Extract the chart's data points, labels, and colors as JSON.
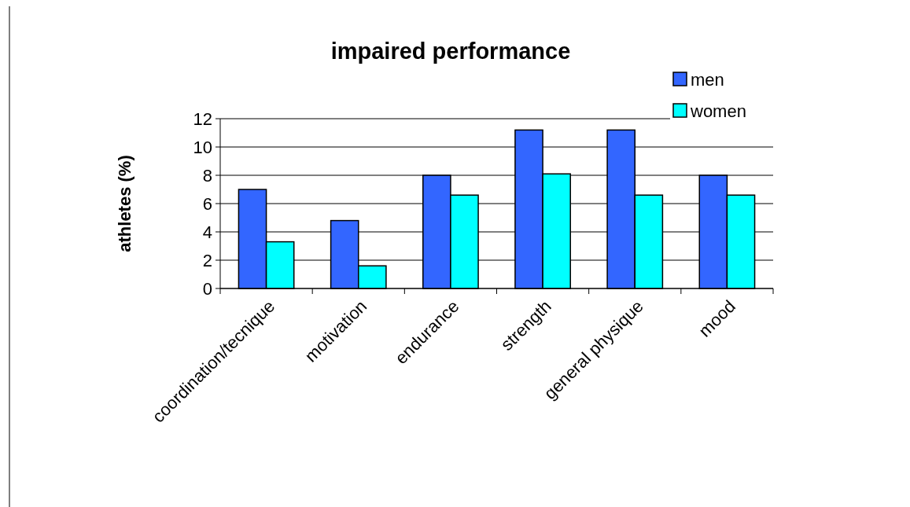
{
  "chart_data": {
    "type": "bar",
    "title": "impaired performance",
    "ylabel": "athletes (%)",
    "categories": [
      "coordination/tecnique",
      "motivation",
      "endurance",
      "strength",
      "general physique",
      "mood"
    ],
    "series": [
      {
        "name": "men",
        "color": "#3366ff",
        "values": [
          7,
          4.8,
          8,
          11.2,
          11.2,
          8
        ]
      },
      {
        "name": "women",
        "color": "#00ffff",
        "values": [
          3.3,
          1.6,
          6.6,
          8.1,
          6.6,
          6.6
        ]
      }
    ],
    "ylim": [
      0,
      12
    ],
    "yticks": [
      0,
      2,
      4,
      6,
      8,
      10,
      12
    ],
    "grid": "y",
    "legend": "top right"
  }
}
